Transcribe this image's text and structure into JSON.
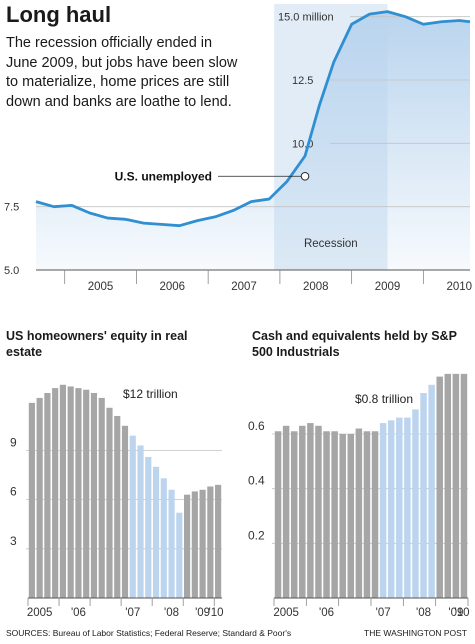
{
  "title": "Long haul",
  "subtitle": "The recession officially ended in June 2009, but jobs have been slow to materialize, home prices are still down and banks are loathe to lend.",
  "sources": "SOURCES: Bureau of Labor Statistics; Federal Reserve; Standard & Poor's",
  "credit": "THE WASHINGTON POST",
  "colors": {
    "line": "#2f8fd1",
    "fill_top": "#b9d4ee",
    "bar_gray": "#a6a6a6",
    "bar_blue": "#bcd4ee",
    "recession_shade": "#c9dcee"
  },
  "chart_data": [
    {
      "type": "line",
      "title": "",
      "ylabel": "",
      "ylim": [
        5.0,
        15.5
      ],
      "yticks": [
        {
          "value": 5.0,
          "label": "5.0"
        },
        {
          "value": 7.5,
          "label": "7.5"
        },
        {
          "value": 10.0,
          "label": "10.0"
        },
        {
          "value": 12.5,
          "label": "12.5"
        },
        {
          "value": 15.0,
          "label": "15.0 million"
        }
      ],
      "xlim": [
        2004.6,
        2010.65
      ],
      "xticks": [
        {
          "value": 2005,
          "label": "2005"
        },
        {
          "value": 2006,
          "label": "2006"
        },
        {
          "value": 2007,
          "label": "2007"
        },
        {
          "value": 2008,
          "label": "2008"
        },
        {
          "value": 2009,
          "label": "2009"
        },
        {
          "value": 2010,
          "label": "2010"
        }
      ],
      "series": [
        {
          "x": [
            2004.6,
            2004.85,
            2005.1,
            2005.35,
            2005.6,
            2005.85,
            2006.1,
            2006.35,
            2006.6,
            2006.85,
            2007.1,
            2007.35,
            2007.6,
            2007.85,
            2008.1,
            2008.35,
            2008.55,
            2008.75,
            2009.0,
            2009.25,
            2009.5,
            2009.75,
            2010.0,
            2010.25,
            2010.5,
            2010.65
          ],
          "y": [
            7.7,
            7.5,
            7.55,
            7.25,
            7.05,
            7.0,
            6.85,
            6.8,
            6.75,
            6.95,
            7.1,
            7.35,
            7.7,
            7.8,
            8.5,
            9.5,
            11.5,
            13.2,
            14.7,
            15.1,
            15.2,
            15.0,
            14.7,
            14.8,
            14.85,
            14.8
          ]
        }
      ],
      "highlight": {
        "x": 2008.35,
        "y": 8.7
      },
      "annotations": [
        {
          "text": "U.S. unemployed",
          "x": 2008.35,
          "y": 8.7
        },
        {
          "text": "Recession",
          "x_start": 2007.92,
          "x_end": 2009.5
        }
      ],
      "grid": true
    },
    {
      "type": "bar",
      "title": "US homeowners' equity in real estate",
      "ylim": [
        0,
        15
      ],
      "yticks": [
        {
          "value": 3,
          "label": "3"
        },
        {
          "value": 6,
          "label": "6"
        },
        {
          "value": 9,
          "label": "9"
        }
      ],
      "xtick_labels": [
        {
          "index": 0,
          "label": "2005"
        },
        {
          "index": 5,
          "label": "'06"
        },
        {
          "index": 12,
          "label": "'07"
        },
        {
          "index": 17,
          "label": "'08"
        },
        {
          "index": 21,
          "label": "'09"
        },
        {
          "index": 25,
          "label": "'10"
        }
      ],
      "values": [
        11.9,
        12.2,
        12.5,
        12.8,
        13.0,
        12.9,
        12.8,
        12.7,
        12.5,
        12.2,
        11.6,
        11.1,
        10.5,
        9.9,
        9.3,
        8.6,
        8.0,
        7.3,
        6.6,
        5.2,
        6.3,
        6.5,
        6.6,
        6.8,
        6.9
      ],
      "highlight_range": [
        13,
        19
      ],
      "annotations": [
        {
          "text": "$12 trillion",
          "index": 8
        }
      ],
      "grid": true
    },
    {
      "type": "bar",
      "title": "Cash and equivalents held by S&P 500 Industrials",
      "ylim": [
        0,
        0.9
      ],
      "yticks": [
        {
          "value": 0.2,
          "label": "0.2"
        },
        {
          "value": 0.4,
          "label": "0.4"
        },
        {
          "value": 0.6,
          "label": "0.6"
        }
      ],
      "xtick_labels": [
        {
          "index": 0,
          "label": "2005"
        },
        {
          "index": 5,
          "label": "'06"
        },
        {
          "index": 12,
          "label": "'07"
        },
        {
          "index": 17,
          "label": "'08"
        },
        {
          "index": 21,
          "label": "'09"
        },
        {
          "index": 25,
          "label": "'10"
        }
      ],
      "values": [
        0.61,
        0.63,
        0.61,
        0.63,
        0.64,
        0.63,
        0.61,
        0.61,
        0.6,
        0.6,
        0.62,
        0.61,
        0.61,
        0.64,
        0.65,
        0.66,
        0.66,
        0.69,
        0.75,
        0.78,
        0.81,
        0.82,
        0.82,
        0.82
      ],
      "highlight_range": [
        13,
        19
      ],
      "annotations": [
        {
          "text": "$0.8 trillion",
          "index": 16
        }
      ],
      "grid": true
    }
  ]
}
